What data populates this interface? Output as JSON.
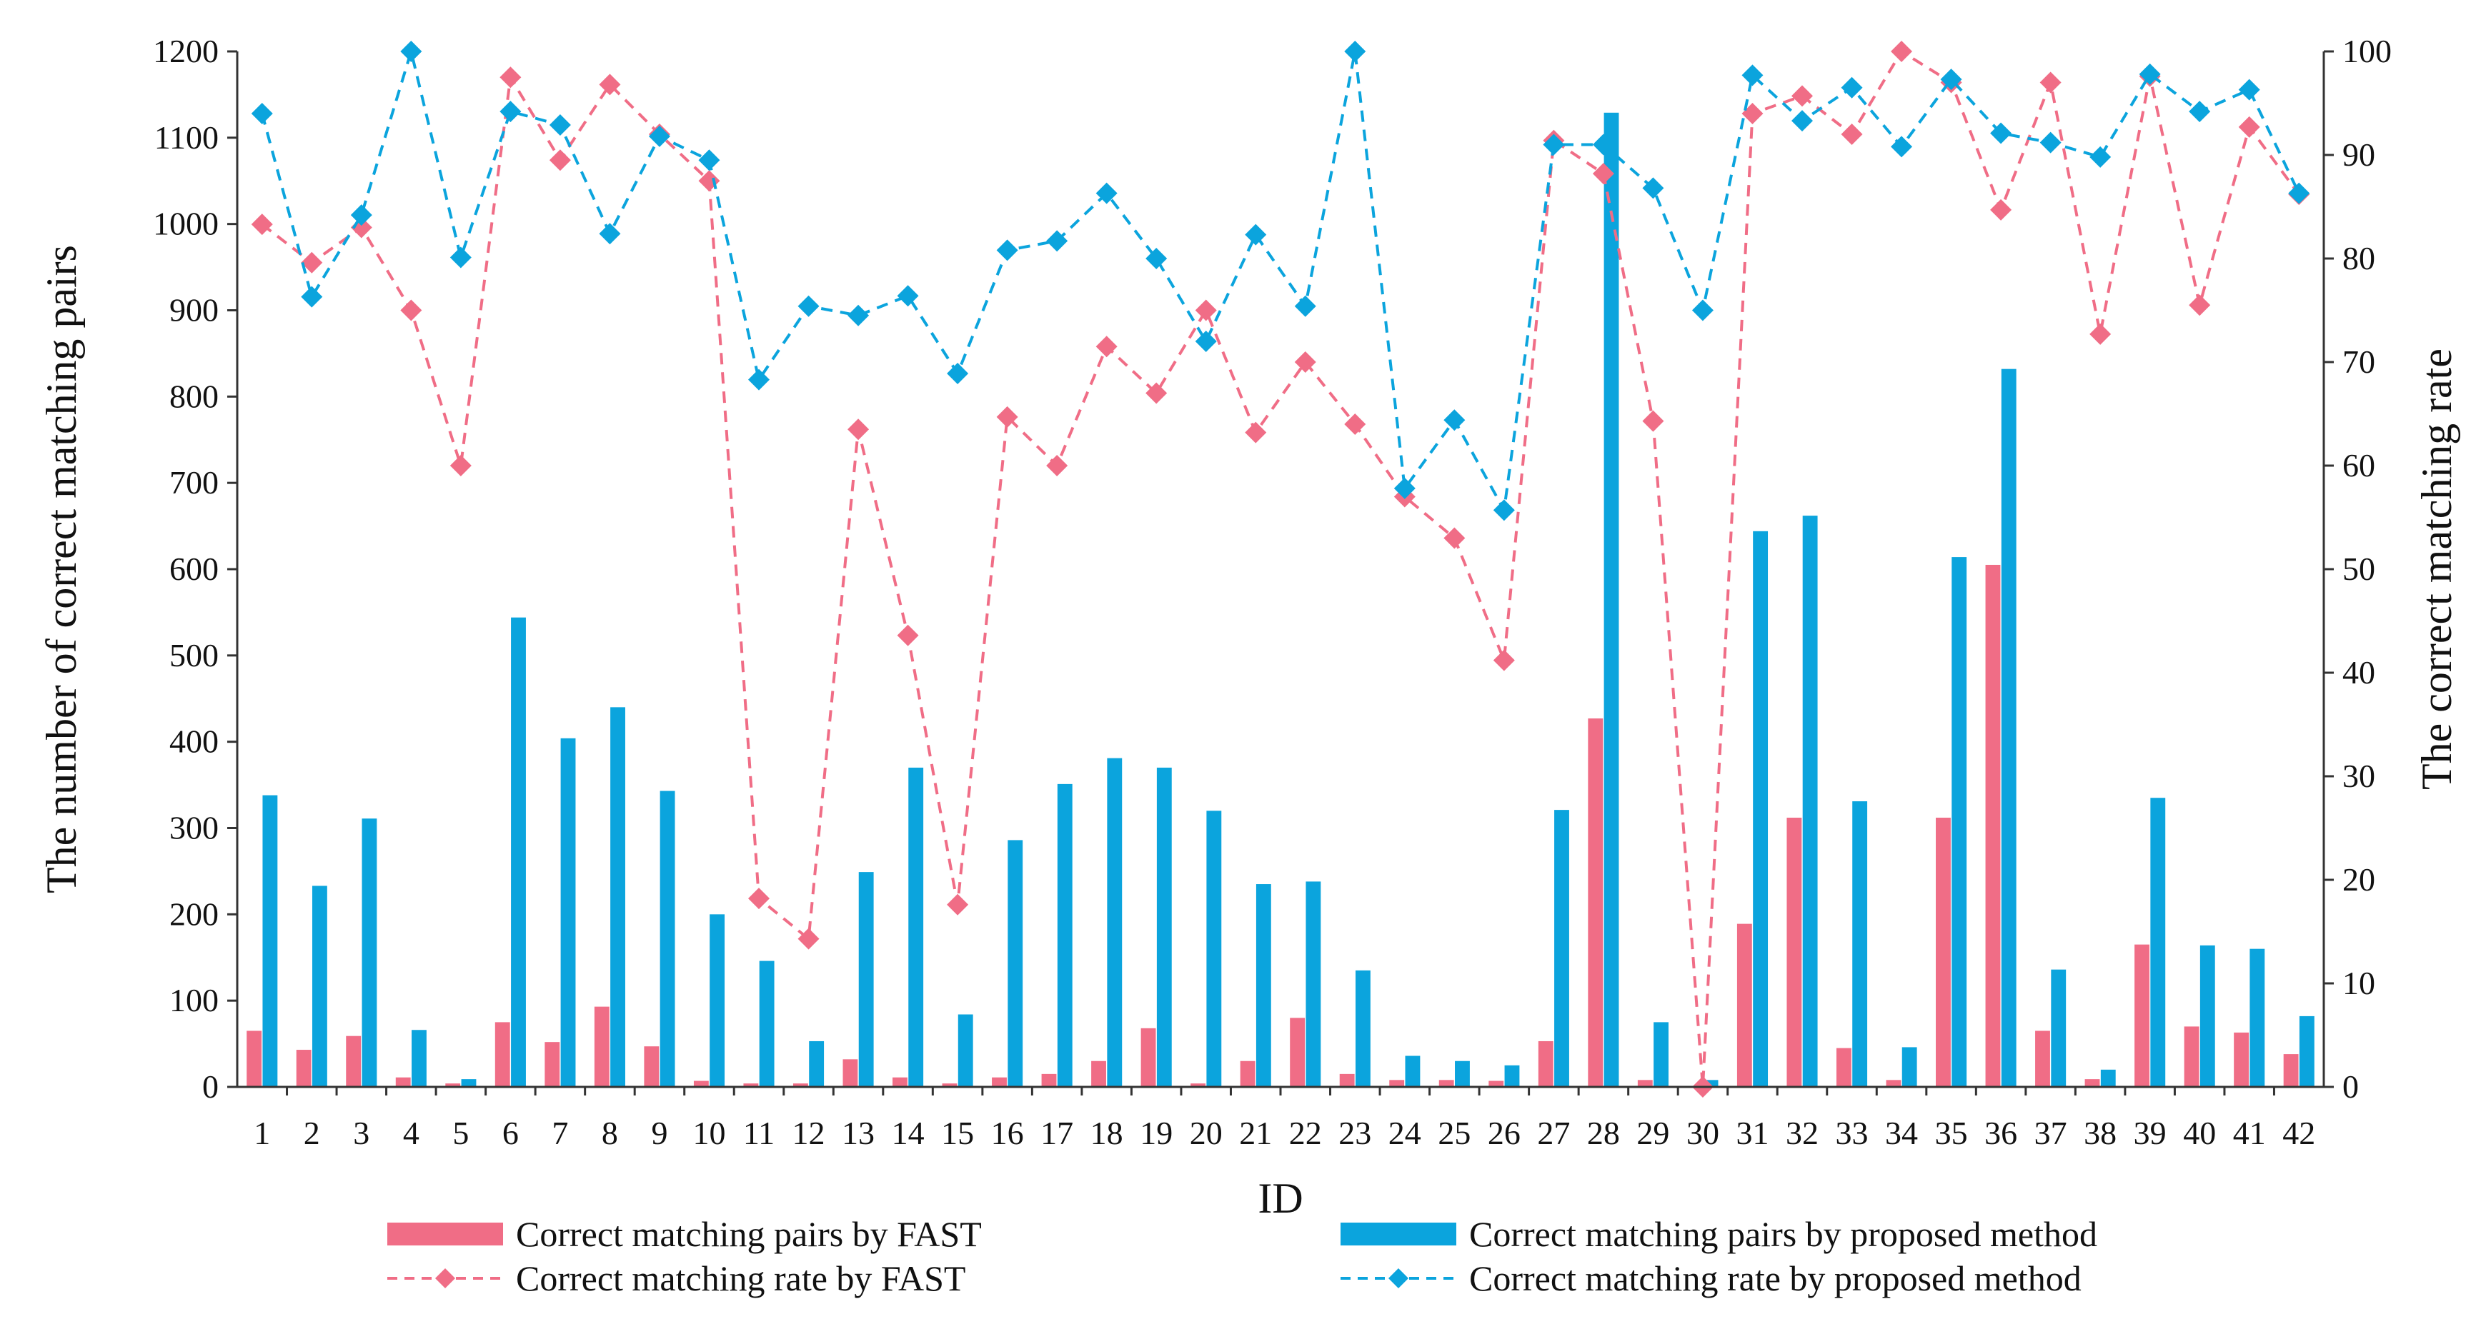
{
  "chart_data": {
    "type": "bar+line",
    "title": "",
    "xlabel": "ID",
    "ylabel_left": "The number of correct matching pairs",
    "ylabel_right": "The correct matching rate",
    "ylim_left": [
      0,
      1200
    ],
    "ylim_right": [
      0,
      100
    ],
    "yticks_left": [
      0,
      100,
      200,
      300,
      400,
      500,
      600,
      700,
      800,
      900,
      1000,
      1100,
      1200
    ],
    "yticks_right": [
      0,
      10,
      20,
      30,
      40,
      50,
      60,
      70,
      80,
      90,
      100
    ],
    "categories": [
      "1",
      "2",
      "3",
      "4",
      "5",
      "6",
      "7",
      "8",
      "9",
      "10",
      "11",
      "12",
      "13",
      "14",
      "15",
      "16",
      "17",
      "18",
      "19",
      "20",
      "21",
      "22",
      "23",
      "24",
      "25",
      "26",
      "27",
      "28",
      "29",
      "30",
      "31",
      "32",
      "33",
      "34",
      "35",
      "36",
      "37",
      "38",
      "39",
      "40",
      "41",
      "42"
    ],
    "bar_series": [
      {
        "name": "Correct matching pairs by FAST",
        "color": "#f06d86",
        "values": [
          65,
          43,
          59,
          11,
          4,
          75,
          52,
          93,
          47,
          7,
          4,
          4,
          32,
          11,
          4,
          11,
          15,
          30,
          68,
          4,
          30,
          80,
          15,
          8,
          8,
          7,
          53,
          427,
          8,
          0,
          189,
          312,
          45,
          8,
          312,
          605,
          65,
          9,
          165,
          70,
          63,
          38
        ]
      },
      {
        "name": "Correct matching pairs by proposed method",
        "color": "#0ba4dd",
        "values": [
          338,
          233,
          311,
          66,
          9,
          544,
          404,
          440,
          343,
          200,
          146,
          53,
          249,
          370,
          84,
          286,
          351,
          381,
          370,
          320,
          235,
          238,
          135,
          36,
          30,
          25,
          321,
          1129,
          75,
          8,
          644,
          662,
          331,
          46,
          614,
          832,
          136,
          20,
          335,
          164,
          160,
          82
        ]
      }
    ],
    "line_series": [
      {
        "name": "Correct matching rate by FAST",
        "color": "#f06d86",
        "marker": "diamond",
        "dash": "dashed",
        "values": [
          83.3,
          79.6,
          83.0,
          75.0,
          60.0,
          97.5,
          89.5,
          96.8,
          92.0,
          87.5,
          18.2,
          14.3,
          63.5,
          43.6,
          17.6,
          64.7,
          60.0,
          71.5,
          67.0,
          75.0,
          63.2,
          70.0,
          64.0,
          57.0,
          53.0,
          41.2,
          91.4,
          88.2,
          64.3,
          0.0,
          94.0,
          95.7,
          92.0,
          100.0,
          97.0,
          84.7,
          97.0,
          72.7,
          97.6,
          75.5,
          92.7,
          86.2
        ]
      },
      {
        "name": "Correct matching rate by proposed method",
        "color": "#0ba4dd",
        "marker": "diamond",
        "dash": "dashed",
        "values": [
          94.0,
          76.3,
          84.2,
          100.0,
          80.1,
          94.2,
          92.9,
          82.4,
          91.8,
          89.5,
          68.3,
          75.4,
          74.5,
          76.4,
          68.9,
          80.8,
          81.7,
          86.3,
          80.0,
          72.0,
          82.3,
          75.4,
          100.0,
          57.8,
          64.4,
          55.7,
          91.0,
          91.0,
          86.8,
          75.0,
          97.7,
          93.3,
          96.5,
          90.8,
          97.3,
          92.1,
          91.2,
          89.8,
          97.8,
          94.2,
          96.3,
          86.3
        ]
      }
    ],
    "legend": {
      "position": "bottom",
      "entries": [
        "Correct matching pairs by FAST",
        "Correct matching pairs by proposed method",
        "Correct matching rate by FAST",
        "Correct matching rate by proposed method"
      ]
    }
  }
}
